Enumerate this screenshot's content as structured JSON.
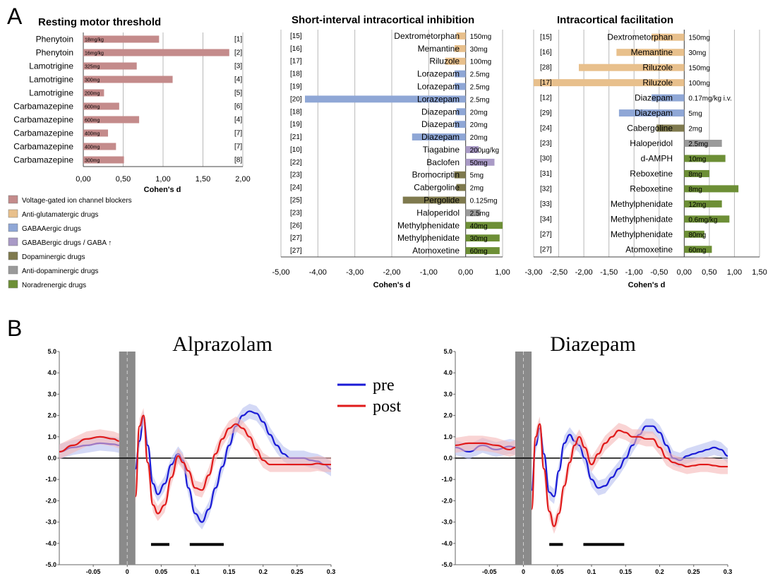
{
  "panel_labels": {
    "a": "A",
    "b": "B"
  },
  "colors": {
    "voltage": "#c48b8b",
    "antiglu": "#e8c08c",
    "gabaa": "#8fa7d6",
    "gabab": "#a99ac6",
    "dopa": "#7f7a4e",
    "antidopa": "#9a9a9a",
    "nora": "#6d8f36",
    "pre": "#1a1ad6",
    "post": "#e01a1a",
    "pre_band": "#b8c0f0",
    "post_band": "#f5b8b8"
  },
  "legend": {
    "items": [
      {
        "label": "Voltage-gated ion channel blockers",
        "color": "#c48b8b"
      },
      {
        "label": "Anti-glutamatergic drugs",
        "color": "#e8c08c"
      },
      {
        "label": "GABAAergic drugs",
        "color": "#8fa7d6"
      },
      {
        "label": "GABABergic drugs / GABA ↑",
        "color": "#a99ac6"
      },
      {
        "label": "Dopaminergic drugs",
        "color": "#7f7a4e"
      },
      {
        "label": "Anti-dopaminergic drugs",
        "color": "#9a9a9a"
      },
      {
        "label": "Noradrenergic drugs",
        "color": "#6d8f36"
      }
    ]
  },
  "chart_data": [
    {
      "type": "bar",
      "title": "Resting motor threshold",
      "xlabel": "Cohen's d",
      "xlim": [
        0,
        2
      ],
      "ticks": [
        "0,00",
        "0,50",
        "1,00",
        "1,50",
        "2,00"
      ],
      "tick_values": [
        0,
        0.5,
        1,
        1.5,
        2
      ],
      "rows": [
        {
          "drug": "Phenytoin",
          "dose": "18mg/kg",
          "ref": "[1]",
          "value": 0.95,
          "cls": "voltage"
        },
        {
          "drug": "Phenytoin",
          "dose": "16mg/kg",
          "ref": "[2]",
          "value": 1.83,
          "cls": "voltage"
        },
        {
          "drug": "Lamotrigine",
          "dose": "325mg",
          "ref": "[3]",
          "value": 0.67,
          "cls": "voltage"
        },
        {
          "drug": "Lamotrigine",
          "dose": "300mg",
          "ref": "[4]",
          "value": 1.12,
          "cls": "voltage"
        },
        {
          "drug": "Lamotrigine",
          "dose": "200mg",
          "ref": "[5]",
          "value": 0.26,
          "cls": "voltage"
        },
        {
          "drug": "Carbamazepine",
          "dose": "600mg",
          "ref": "[6]",
          "value": 0.45,
          "cls": "voltage"
        },
        {
          "drug": "Carbamazepine",
          "dose": "600mg",
          "ref": "[4]",
          "value": 0.7,
          "cls": "voltage"
        },
        {
          "drug": "Carbamazepine",
          "dose": "400mg",
          "ref": "[7]",
          "value": 0.31,
          "cls": "voltage"
        },
        {
          "drug": "Carbamazepine",
          "dose": "400mg",
          "ref": "[7]",
          "value": 0.41,
          "cls": "voltage"
        },
        {
          "drug": "Carbamazepine",
          "dose": "300mg",
          "ref": "[8]",
          "value": 0.51,
          "cls": "voltage"
        }
      ]
    },
    {
      "type": "bar",
      "title": "Short-interval intracortical inhibition",
      "xlabel": "Cohen's d",
      "xlim": [
        -5,
        1
      ],
      "ticks": [
        "-5,00",
        "-4,00",
        "-3,00",
        "-2,00",
        "-1,00",
        "0,00",
        "1,00"
      ],
      "tick_values": [
        -5,
        -4,
        -3,
        -2,
        -1,
        0,
        1
      ],
      "rows": [
        {
          "drug": "Dextrometorphan",
          "dose": "150mg",
          "ref": "[15]",
          "value": -0.25,
          "cls": "antiglu"
        },
        {
          "drug": "Memantine",
          "dose": "30mg",
          "ref": "[16]",
          "value": -0.3,
          "cls": "antiglu"
        },
        {
          "drug": "Riluzole",
          "dose": "100mg",
          "ref": "[17]",
          "value": -0.55,
          "cls": "antiglu"
        },
        {
          "drug": "Lorazepam",
          "dose": "2.5mg",
          "ref": "[18]",
          "value": -0.3,
          "cls": "gabaa"
        },
        {
          "drug": "Lorazepam",
          "dose": "2.5mg",
          "ref": "[19]",
          "value": -0.3,
          "cls": "gabaa"
        },
        {
          "drug": "Lorazepam",
          "dose": "2.5mg",
          "ref": "[20]",
          "value": -4.35,
          "cls": "gabaa"
        },
        {
          "drug": "Diazepam",
          "dose": "20mg",
          "ref": "[18]",
          "value": -0.25,
          "cls": "gabaa"
        },
        {
          "drug": "Diazepam",
          "dose": "20mg",
          "ref": "[19]",
          "value": -0.3,
          "cls": "gabaa"
        },
        {
          "drug": "Diazepam",
          "dose": "20mg",
          "ref": "[21]",
          "value": -1.45,
          "cls": "gabaa"
        },
        {
          "drug": "Tiagabine",
          "dose": "200µg/kg",
          "ref": "[10]",
          "value": 0.35,
          "cls": "gabab"
        },
        {
          "drug": "Baclofen",
          "dose": "50mg",
          "ref": "[22]",
          "value": 0.78,
          "cls": "gabab"
        },
        {
          "drug": "Bromocriptin",
          "dose": "5mg",
          "ref": "[23]",
          "value": -0.3,
          "cls": "dopa"
        },
        {
          "drug": "Cabergoline",
          "dose": "2mg",
          "ref": "[24]",
          "value": -0.25,
          "cls": "dopa"
        },
        {
          "drug": "Pergolide",
          "dose": "0.125mg",
          "ref": "[25]",
          "value": -1.7,
          "cls": "dopa"
        },
        {
          "drug": "Haloperidol",
          "dose": "2.5mg",
          "ref": "[23]",
          "value": 0.4,
          "cls": "antidopa"
        },
        {
          "drug": "Methylphenidate",
          "dose": "40mg",
          "ref": "[26]",
          "value": 1.0,
          "cls": "nora"
        },
        {
          "drug": "Methylphenidate",
          "dose": "30mg",
          "ref": "[27]",
          "value": 0.92,
          "cls": "nora"
        },
        {
          "drug": "Atomoxetine",
          "dose": "60mg",
          "ref": "[27]",
          "value": 0.92,
          "cls": "nora"
        }
      ]
    },
    {
      "type": "bar",
      "title": "Intracortical facilitation",
      "xlabel": "Cohen's d",
      "xlim": [
        -3,
        1.5
      ],
      "ticks": [
        "-3,00",
        "-2,50",
        "-2,00",
        "-1,50",
        "-1,00",
        "-0,50",
        "0,00",
        "0,50",
        "1,00",
        "1,50"
      ],
      "tick_values": [
        -3,
        -2.5,
        -2,
        -1.5,
        -1,
        -0.5,
        0,
        0.5,
        1,
        1.5
      ],
      "rows": [
        {
          "drug": "Dextrometorphan",
          "dose": "150mg",
          "ref": "[15]",
          "value": -0.65,
          "cls": "antiglu"
        },
        {
          "drug": "Memantine",
          "dose": "30mg",
          "ref": "[16]",
          "value": -1.35,
          "cls": "antiglu"
        },
        {
          "drug": "Riluzole",
          "dose": "150mg",
          "ref": "[28]",
          "value": -2.1,
          "cls": "antiglu"
        },
        {
          "drug": "Riluzole",
          "dose": "100mg",
          "ref": "[17]",
          "value": -3.0,
          "cls": "antiglu"
        },
        {
          "drug": "Diazepam",
          "dose": "0.17mg/kg i.v.",
          "ref": "[12]",
          "value": -0.65,
          "cls": "gabaa"
        },
        {
          "drug": "Diazepam",
          "dose": "5mg",
          "ref": "[29]",
          "value": -1.3,
          "cls": "gabaa"
        },
        {
          "drug": "Cabergoline",
          "dose": "2mg",
          "ref": "[24]",
          "value": -0.55,
          "cls": "dopa"
        },
        {
          "drug": "Haloperidol",
          "dose": "2.5mg",
          "ref": "[23]",
          "value": 0.75,
          "cls": "antidopa"
        },
        {
          "drug": "d-AMPH",
          "dose": "10mg",
          "ref": "[30]",
          "value": 0.82,
          "cls": "nora"
        },
        {
          "drug": "Reboxetine",
          "dose": "8mg",
          "ref": "[31]",
          "value": 0.5,
          "cls": "nora"
        },
        {
          "drug": "Reboxetine",
          "dose": "8mg",
          "ref": "[32]",
          "value": 1.08,
          "cls": "nora"
        },
        {
          "drug": "Methylphenidate",
          "dose": "12mg",
          "ref": "[33]",
          "value": 0.75,
          "cls": "nora"
        },
        {
          "drug": "Methylphenidate",
          "dose": "0.6mg/kg",
          "ref": "[34]",
          "value": 0.9,
          "cls": "nora"
        },
        {
          "drug": "Methylphenidate",
          "dose": "80mg",
          "ref": "[27]",
          "value": 0.4,
          "cls": "nora"
        },
        {
          "drug": "Atomoxetine",
          "dose": "60mg",
          "ref": "[27]",
          "value": 0.55,
          "cls": "nora"
        }
      ]
    },
    {
      "type": "line",
      "title": "Alprazolam",
      "xlim": [
        -0.1,
        0.3
      ],
      "ylim": [
        -5,
        5
      ],
      "x_ticks": [
        "-0.05",
        "0",
        "0.05",
        "0.1",
        "0.15",
        "0.2",
        "0.25",
        "0.3"
      ],
      "x_tick_values": [
        -0.05,
        0,
        0.05,
        0.1,
        0.15,
        0.2,
        0.25,
        0.3
      ],
      "y_ticks": [
        "5.0",
        "4.0",
        "3.0",
        "2.0",
        "1.0",
        "0.0",
        "-1.0",
        "-2.0",
        "-3.0",
        "-4.0",
        "-5.0"
      ],
      "y_tick_values": [
        5,
        4,
        3,
        2,
        1,
        0,
        -1,
        -2,
        -3,
        -4,
        -5
      ],
      "masked_window": [
        -0.012,
        0.012
      ],
      "significance_bars": [
        [
          0.035,
          0.062
        ],
        [
          0.092,
          0.142
        ]
      ],
      "series": [
        {
          "name": "pre",
          "x": [
            -0.1,
            -0.08,
            -0.06,
            -0.04,
            -0.02,
            -0.012,
            0.012,
            0.018,
            0.024,
            0.03,
            0.038,
            0.045,
            0.055,
            0.065,
            0.075,
            0.082,
            0.09,
            0.1,
            0.11,
            0.12,
            0.13,
            0.14,
            0.15,
            0.16,
            0.17,
            0.18,
            0.19,
            0.2,
            0.21,
            0.22,
            0.23,
            0.24,
            0.25,
            0.26,
            0.27,
            0.28,
            0.29,
            0.3
          ],
          "y": [
            0.3,
            0.5,
            0.6,
            0.7,
            0.65,
            0.6,
            -0.5,
            0.8,
            1.9,
            0.6,
            -1.2,
            -1.7,
            -1.2,
            -0.3,
            0.2,
            -0.1,
            -1.4,
            -2.6,
            -3.0,
            -2.4,
            -1.4,
            -0.4,
            0.6,
            1.5,
            2.0,
            2.2,
            2.1,
            1.7,
            1.1,
            0.6,
            0.2,
            0.0,
            0.0,
            0.0,
            -0.1,
            -0.15,
            -0.3,
            -0.5
          ]
        },
        {
          "name": "post",
          "x": [
            -0.1,
            -0.08,
            -0.06,
            -0.04,
            -0.02,
            -0.012,
            0.012,
            0.018,
            0.024,
            0.03,
            0.038,
            0.045,
            0.055,
            0.065,
            0.075,
            0.082,
            0.09,
            0.1,
            0.11,
            0.12,
            0.13,
            0.14,
            0.15,
            0.16,
            0.17,
            0.18,
            0.19,
            0.2,
            0.21,
            0.22,
            0.23,
            0.24,
            0.25,
            0.26,
            0.27,
            0.28,
            0.29,
            0.3
          ],
          "y": [
            0.3,
            0.6,
            0.9,
            1.0,
            0.9,
            0.8,
            -1.8,
            1.5,
            2.0,
            -0.2,
            -2.2,
            -2.6,
            -2.2,
            -0.9,
            0.1,
            -0.2,
            -0.6,
            -1.4,
            -1.5,
            -0.8,
            0.2,
            0.9,
            1.4,
            1.6,
            1.4,
            1.0,
            0.4,
            -0.1,
            -0.3,
            -0.3,
            -0.3,
            -0.3,
            -0.3,
            -0.3,
            -0.3,
            -0.25,
            -0.3,
            -0.3
          ]
        }
      ]
    },
    {
      "type": "line",
      "title": "Diazepam",
      "xlim": [
        -0.1,
        0.3
      ],
      "ylim": [
        -5,
        5
      ],
      "x_ticks": [
        "-0.05",
        "0",
        "0.05",
        "0.1",
        "0.15",
        "0.2",
        "0.25",
        "0.3"
      ],
      "x_tick_values": [
        -0.05,
        0,
        0.05,
        0.1,
        0.15,
        0.2,
        0.25,
        0.3
      ],
      "y_ticks": [
        "5.0",
        "4.0",
        "3.0",
        "2.0",
        "1.0",
        "0.0",
        "-1.0",
        "-2.0",
        "-3.0",
        "-4.0",
        "-5.0"
      ],
      "y_tick_values": [
        5,
        4,
        3,
        2,
        1,
        0,
        -1,
        -2,
        -3,
        -4,
        -5
      ],
      "masked_window": [
        -0.012,
        0.012
      ],
      "significance_bars": [
        [
          0.038,
          0.058
        ],
        [
          0.088,
          0.148
        ]
      ],
      "series": [
        {
          "name": "pre",
          "x": [
            -0.1,
            -0.08,
            -0.06,
            -0.04,
            -0.02,
            -0.012,
            0.012,
            0.018,
            0.024,
            0.03,
            0.038,
            0.045,
            0.052,
            0.06,
            0.068,
            0.075,
            0.082,
            0.09,
            0.1,
            0.11,
            0.12,
            0.13,
            0.14,
            0.15,
            0.16,
            0.17,
            0.18,
            0.19,
            0.2,
            0.21,
            0.22,
            0.23,
            0.24,
            0.25,
            0.26,
            0.27,
            0.28,
            0.29,
            0.3
          ],
          "y": [
            0.5,
            0.3,
            0.6,
            0.4,
            0.55,
            0.5,
            -1.5,
            0.6,
            1.4,
            0.2,
            -1.6,
            -1.8,
            -0.6,
            0.7,
            1.1,
            0.8,
            0.6,
            0.0,
            -1.0,
            -1.4,
            -1.3,
            -0.9,
            -0.5,
            0.0,
            0.6,
            1.1,
            1.5,
            1.5,
            1.2,
            0.6,
            0.0,
            -0.1,
            0.1,
            0.2,
            0.3,
            0.4,
            0.5,
            0.4,
            0.1
          ]
        },
        {
          "name": "post",
          "x": [
            -0.1,
            -0.08,
            -0.06,
            -0.04,
            -0.02,
            -0.012,
            0.012,
            0.018,
            0.024,
            0.03,
            0.038,
            0.045,
            0.052,
            0.06,
            0.068,
            0.075,
            0.082,
            0.09,
            0.1,
            0.11,
            0.12,
            0.13,
            0.14,
            0.15,
            0.16,
            0.17,
            0.18,
            0.19,
            0.2,
            0.21,
            0.22,
            0.23,
            0.24,
            0.25,
            0.26,
            0.27,
            0.28,
            0.29,
            0.3
          ],
          "y": [
            0.6,
            0.7,
            0.7,
            0.6,
            0.4,
            0.5,
            -2.4,
            1.0,
            1.6,
            -0.5,
            -2.5,
            -3.2,
            -2.6,
            -1.3,
            -0.2,
            0.6,
            1.0,
            0.5,
            -0.3,
            0.2,
            0.7,
            1.0,
            1.3,
            1.2,
            1.0,
            1.0,
            0.9,
            0.9,
            0.5,
            0.0,
            -0.2,
            -0.3,
            -0.4,
            -0.35,
            -0.3,
            -0.3,
            -0.35,
            -0.4,
            -0.4
          ]
        }
      ]
    }
  ]
}
